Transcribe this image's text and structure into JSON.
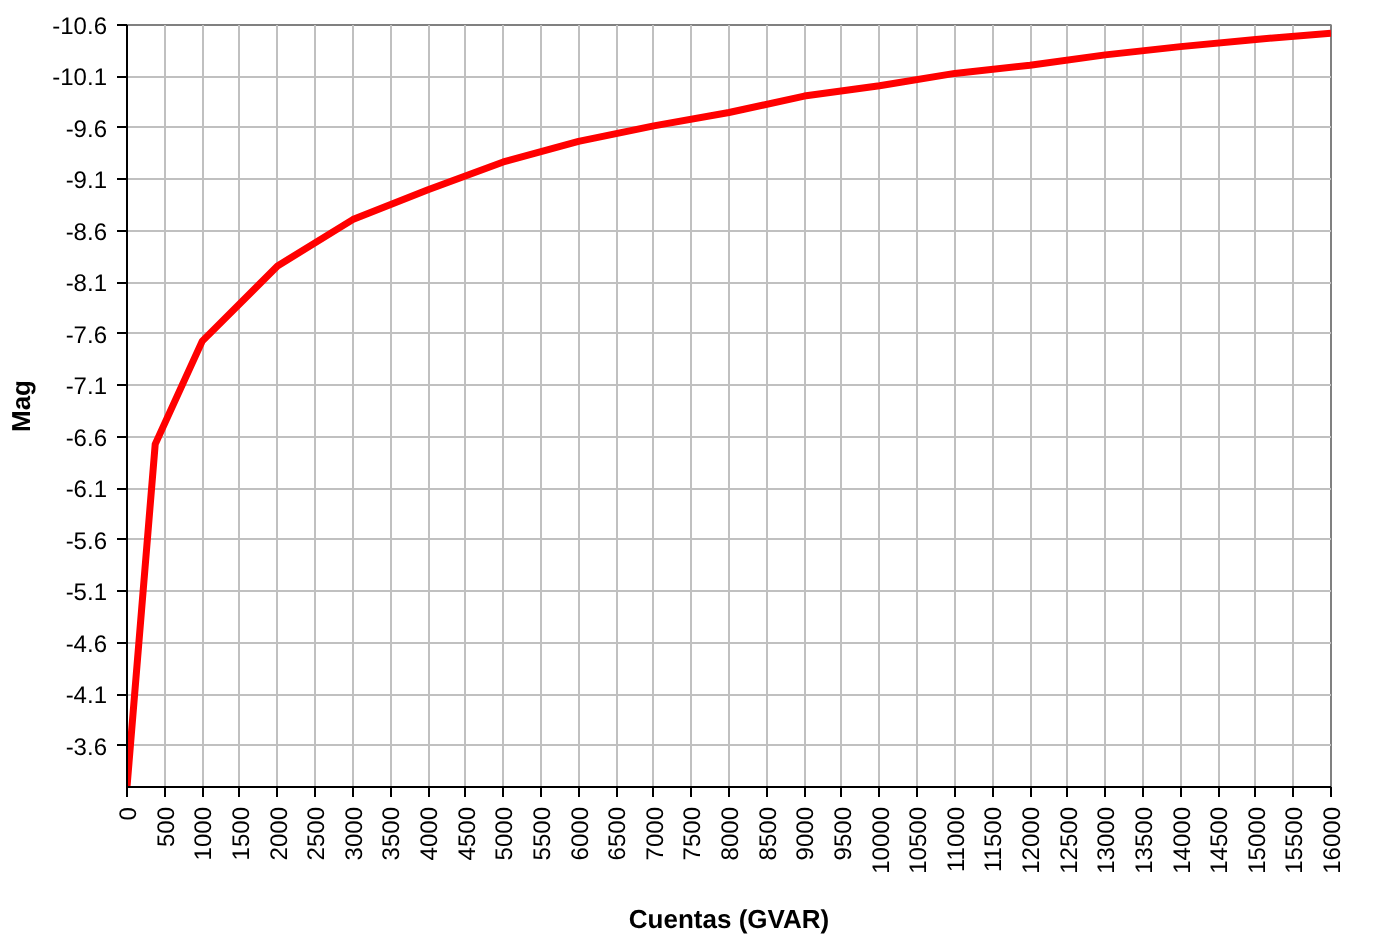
{
  "chart_data": {
    "type": "line",
    "xlabel": "Cuentas (GVAR)",
    "ylabel": "Mag",
    "x": [
      0,
      375,
      1000,
      2000,
      3000,
      4000,
      5000,
      6000,
      7000,
      8000,
      9000,
      10000,
      11000,
      12000,
      13000,
      14000,
      15000,
      16000
    ],
    "series": [
      {
        "color": "#ff0000",
        "values": [
          -3.2,
          -6.53,
          -7.53,
          -8.26,
          -8.71,
          -9.0,
          -9.27,
          -9.47,
          -9.62,
          -9.75,
          -9.91,
          -10.01,
          -10.13,
          -10.21,
          -10.31,
          -10.39,
          -10.46,
          -10.52
        ]
      }
    ],
    "xlim": [
      0,
      16000
    ],
    "ylim": [
      -3.2,
      -10.6
    ],
    "xticks": [
      0,
      500,
      1000,
      1500,
      2000,
      2500,
      3000,
      3500,
      4000,
      4500,
      5000,
      5500,
      6000,
      6500,
      7000,
      7500,
      8000,
      8500,
      9000,
      9500,
      10000,
      10500,
      11000,
      11500,
      12000,
      12500,
      13000,
      13500,
      14000,
      14500,
      15000,
      15500,
      16000
    ],
    "yticks": [
      -3.6,
      -4.1,
      -4.6,
      -5.1,
      -5.6,
      -6.1,
      -6.6,
      -7.1,
      -7.6,
      -8.1,
      -8.6,
      -9.1,
      -9.6,
      -10.1,
      -10.6
    ],
    "grid": true,
    "marker": "none",
    "line_style": "solid"
  }
}
